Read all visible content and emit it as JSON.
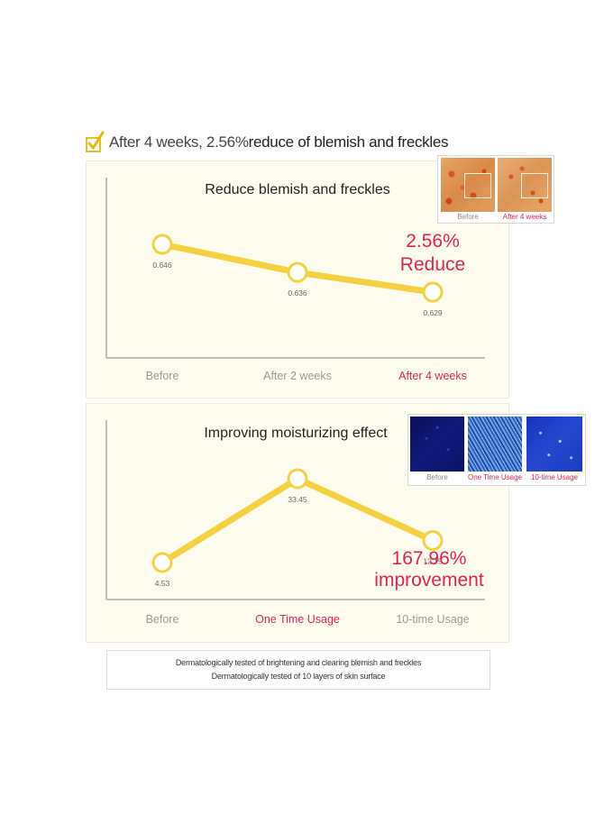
{
  "headline": {
    "text_pre": "After 4 weeks, 2.56% ",
    "text_bold": "reduce of blemish and freckles"
  },
  "colors": {
    "accent_line": "#f5d040",
    "highlight_red": "#e0234e",
    "panel_bg": "#fdfcee",
    "axis": "#bdbdbd"
  },
  "chart_data": [
    {
      "type": "line",
      "title": "Reduce blemish and freckles",
      "categories": [
        "Before",
        "After 2 weeks",
        "After 4 weeks"
      ],
      "values": [
        0.646,
        0.636,
        0.629
      ],
      "value_labels": [
        "0.646",
        "0.636",
        "0.629"
      ],
      "highlight_category": "After 4 weeks",
      "callout": [
        "2.56%",
        "Reduce"
      ],
      "grid": false
    },
    {
      "type": "line",
      "title": "Improving moisturizing effect",
      "categories": [
        "Before",
        "One Time Usage",
        "10-time Usage"
      ],
      "values": [
        4.53,
        33.45,
        12.15
      ],
      "value_labels": [
        "4.53",
        "33.45",
        "12.15"
      ],
      "highlight_category": "One Time Usage",
      "callout": [
        "167.96%",
        "improvement"
      ],
      "grid": false
    }
  ],
  "photos1": {
    "captions": [
      "Before",
      "After 4 weeks"
    ]
  },
  "photos2": {
    "captions": [
      "Before",
      "One Time Usage",
      "10-time Usage"
    ]
  },
  "footer": {
    "line1": "Dermatologically tested of brightening and clearing blemish and freckles",
    "line2": "Dermatologically tested of 10 layers of skin surface"
  }
}
